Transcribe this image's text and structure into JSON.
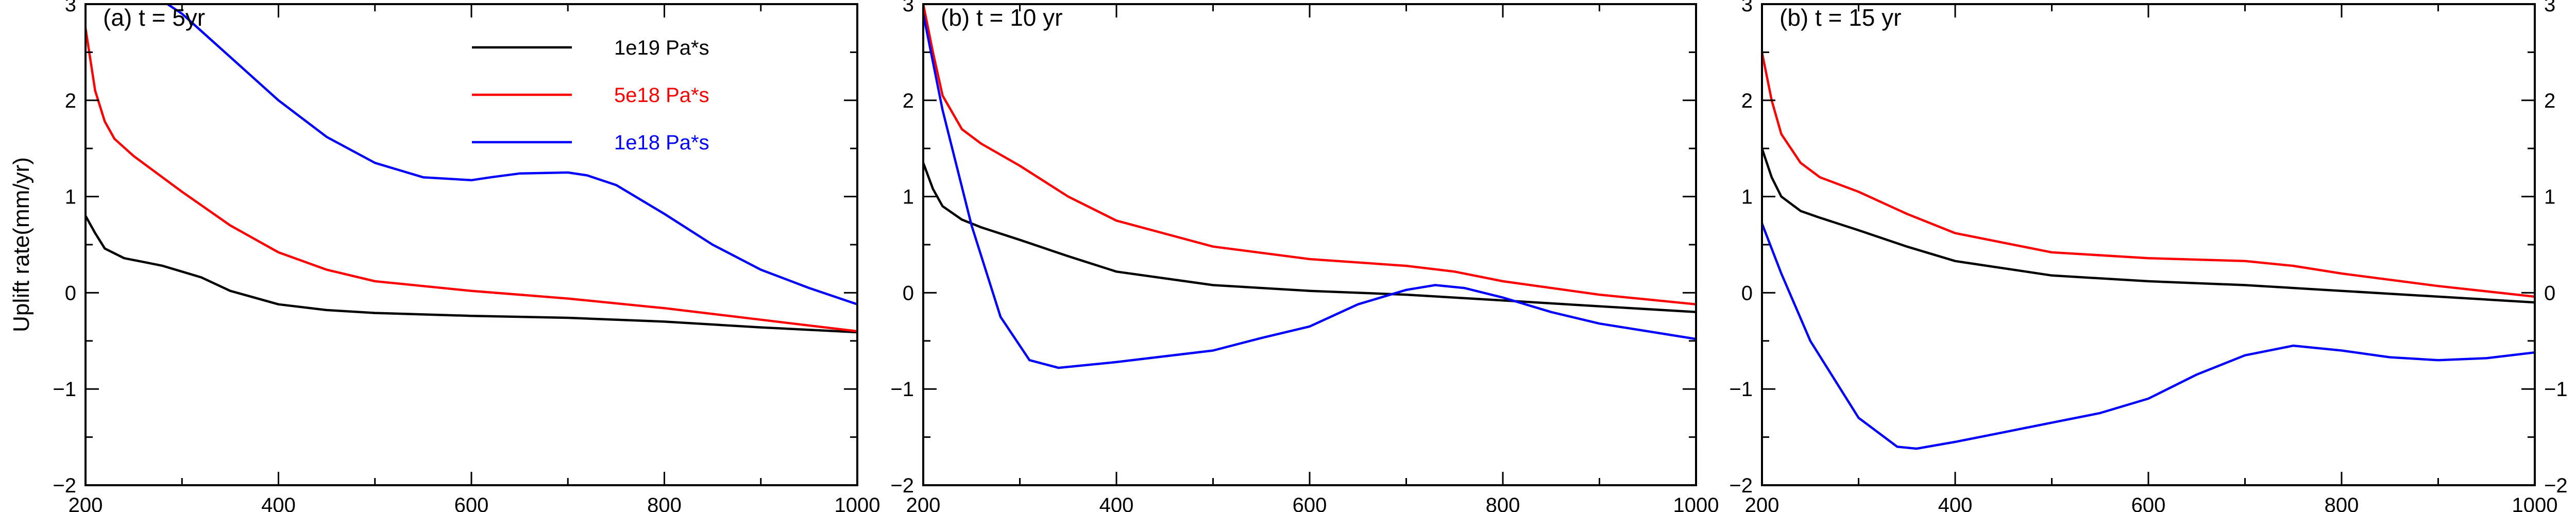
{
  "figure": {
    "ylabel": "Uplift rate(mm/yr)",
    "legend_placement": "top-center of panel (a)"
  },
  "chart_data": [
    {
      "type": "line",
      "panel_label": "(a) t = 5yr",
      "xlim": [
        200,
        1000
      ],
      "ylim": [
        -2,
        3
      ],
      "x_ticks": [
        200,
        400,
        600,
        800,
        1000
      ],
      "y_ticks": [
        -2,
        -1,
        0,
        1,
        2,
        3
      ],
      "grid": false,
      "series": [
        {
          "name": "1e19 Pa*s",
          "color": "#000000",
          "x": [
            200,
            210,
            220,
            240,
            260,
            280,
            300,
            320,
            350,
            400,
            450,
            500,
            600,
            700,
            800,
            900,
            1000
          ],
          "y": [
            0.8,
            0.62,
            0.46,
            0.36,
            0.32,
            0.28,
            0.22,
            0.16,
            0.02,
            -0.12,
            -0.18,
            -0.21,
            -0.24,
            -0.26,
            -0.3,
            -0.36,
            -0.41
          ]
        },
        {
          "name": "5e18 Pa*s",
          "color": "#ff0000",
          "x": [
            200,
            210,
            220,
            230,
            250,
            300,
            350,
            400,
            450,
            500,
            600,
            700,
            800,
            900,
            1000
          ],
          "y": [
            2.75,
            2.1,
            1.78,
            1.6,
            1.42,
            1.05,
            0.7,
            0.42,
            0.24,
            0.12,
            0.02,
            -0.06,
            -0.16,
            -0.28,
            -0.4
          ]
        },
        {
          "name": "1e18 Pa*s",
          "color": "#0000ff",
          "x": [
            285,
            300,
            350,
            400,
            450,
            500,
            550,
            600,
            620,
            650,
            700,
            720,
            750,
            800,
            850,
            900,
            950,
            1000
          ],
          "y": [
            3.0,
            2.9,
            2.45,
            2.0,
            1.62,
            1.35,
            1.2,
            1.17,
            1.2,
            1.24,
            1.25,
            1.22,
            1.12,
            0.82,
            0.5,
            0.24,
            0.05,
            -0.12
          ]
        }
      ]
    },
    {
      "type": "line",
      "panel_label": "(b) t = 10 yr",
      "xlim": [
        200,
        1000
      ],
      "ylim": [
        -2,
        3
      ],
      "x_ticks": [
        200,
        400,
        600,
        800,
        1000
      ],
      "y_ticks": [
        -2,
        -1,
        0,
        1,
        2,
        3
      ],
      "grid": false,
      "series": [
        {
          "name": "1e19 Pa*s",
          "color": "#000000",
          "x": [
            200,
            210,
            220,
            240,
            260,
            300,
            350,
            400,
            500,
            600,
            700,
            800,
            900,
            1000
          ],
          "y": [
            1.35,
            1.08,
            0.9,
            0.76,
            0.68,
            0.55,
            0.38,
            0.22,
            0.08,
            0.02,
            -0.02,
            -0.08,
            -0.14,
            -0.2
          ]
        },
        {
          "name": "5e18 Pa*s",
          "color": "#ff0000",
          "x": [
            200,
            210,
            220,
            240,
            260,
            300,
            350,
            400,
            500,
            600,
            700,
            750,
            800,
            900,
            1000
          ],
          "y": [
            3.0,
            2.5,
            2.05,
            1.7,
            1.55,
            1.32,
            1.0,
            0.75,
            0.48,
            0.35,
            0.28,
            0.22,
            0.12,
            -0.02,
            -0.12
          ]
        },
        {
          "name": "1e18 Pa*s",
          "color": "#0000ff",
          "x": [
            200,
            220,
            250,
            280,
            310,
            340,
            400,
            500,
            550,
            600,
            650,
            700,
            730,
            760,
            800,
            850,
            900,
            1000
          ],
          "y": [
            2.9,
            1.9,
            0.7,
            -0.25,
            -0.7,
            -0.78,
            -0.72,
            -0.6,
            -0.47,
            -0.35,
            -0.12,
            0.03,
            0.08,
            0.05,
            -0.05,
            -0.2,
            -0.32,
            -0.48
          ]
        }
      ]
    },
    {
      "type": "line",
      "panel_label": "(b) t = 15 yr",
      "xlim": [
        200,
        1000
      ],
      "ylim": [
        -2,
        3
      ],
      "x_ticks": [
        200,
        400,
        600,
        800,
        1000
      ],
      "y_ticks": [
        -2,
        -1,
        0,
        1,
        2,
        3
      ],
      "grid": false,
      "series": [
        {
          "name": "1e19 Pa*s",
          "color": "#000000",
          "x": [
            200,
            210,
            220,
            240,
            260,
            300,
            350,
            400,
            500,
            600,
            700,
            800,
            900,
            1000
          ],
          "y": [
            1.5,
            1.2,
            1.0,
            0.85,
            0.78,
            0.65,
            0.48,
            0.33,
            0.18,
            0.12,
            0.08,
            0.02,
            -0.04,
            -0.1
          ]
        },
        {
          "name": "5e18 Pa*s",
          "color": "#ff0000",
          "x": [
            200,
            210,
            220,
            240,
            260,
            300,
            350,
            400,
            500,
            600,
            700,
            750,
            800,
            900,
            1000
          ],
          "y": [
            2.5,
            2.0,
            1.65,
            1.35,
            1.2,
            1.05,
            0.82,
            0.62,
            0.42,
            0.36,
            0.33,
            0.28,
            0.2,
            0.07,
            -0.04
          ]
        },
        {
          "name": "1e18 Pa*s",
          "color": "#0000ff",
          "x": [
            200,
            220,
            250,
            300,
            340,
            360,
            400,
            450,
            500,
            550,
            600,
            650,
            700,
            750,
            800,
            850,
            900,
            950,
            1000
          ],
          "y": [
            0.72,
            0.2,
            -0.5,
            -1.3,
            -1.6,
            -1.62,
            -1.55,
            -1.45,
            -1.35,
            -1.25,
            -1.1,
            -0.85,
            -0.65,
            -0.55,
            -0.6,
            -0.67,
            -0.7,
            -0.68,
            -0.62
          ]
        }
      ]
    }
  ]
}
